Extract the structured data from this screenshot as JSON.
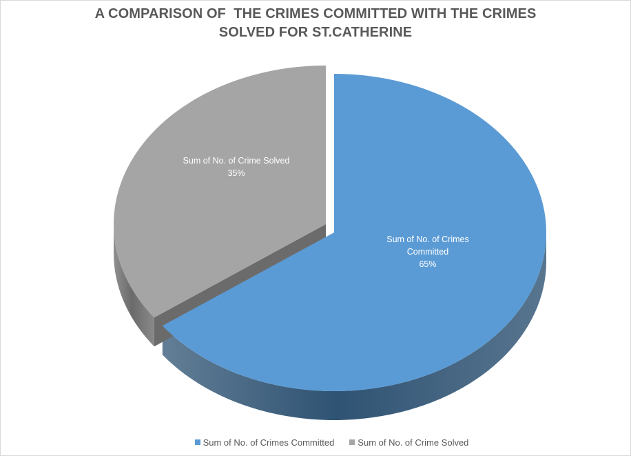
{
  "chart_data": {
    "type": "pie",
    "title_lines": [
      "A COMPARISON OF  THE CRIMES COMMITTED WITH THE CRIMES",
      "SOLVED FOR ST.CATHERINE"
    ],
    "three_d": true,
    "exploded": true,
    "legend_position": "bottom",
    "slices": [
      {
        "name": "Sum of No. of Crimes Committed",
        "percent": 65,
        "value_label": "65%",
        "label_lines": [
          "Sum of No. of Crimes",
          "Committed",
          "65%"
        ],
        "color": "#5b9bd5",
        "side_color": "#2f5373"
      },
      {
        "name": "Sum of No. of Crime Solved",
        "percent": 35,
        "value_label": "35%",
        "label_lines": [
          "Sum of No. of Crime Solved",
          "35%"
        ],
        "color": "#a5a5a5",
        "side_color": "#6b6b6b"
      }
    ]
  }
}
